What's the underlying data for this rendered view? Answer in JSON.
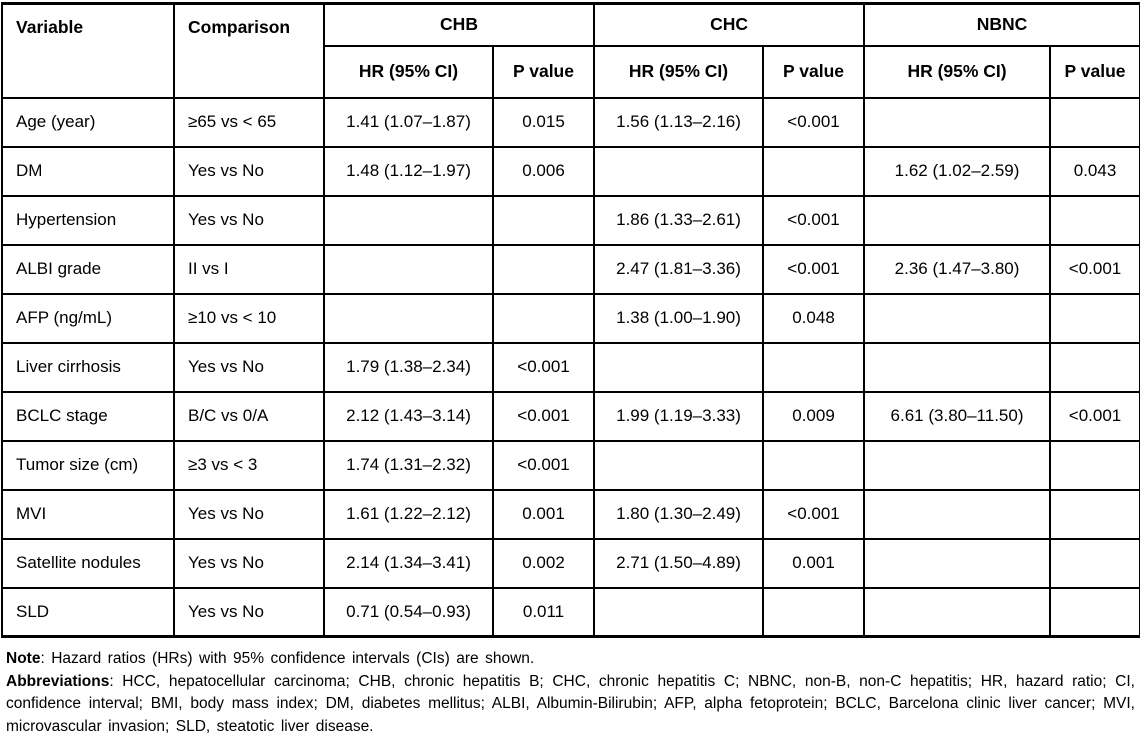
{
  "table": {
    "header": {
      "variable": "Variable",
      "comparison": "Comparison",
      "groups": [
        {
          "label": "CHB"
        },
        {
          "label": "CHC"
        },
        {
          "label": "NBNC"
        }
      ],
      "sub": {
        "hr": "HR (95% CI)",
        "p": "P value"
      }
    },
    "rows": [
      {
        "variable": "Age (year)",
        "comparison": "≥65 vs < 65",
        "chb": {
          "hr": "1.41 (1.07–1.87)",
          "p": "0.015"
        },
        "chc": {
          "hr": "1.56 (1.13–2.16)",
          "p": "<0.001"
        },
        "nbnc": {
          "hr": "",
          "p": ""
        }
      },
      {
        "variable": "DM",
        "comparison": "Yes vs No",
        "chb": {
          "hr": "1.48 (1.12–1.97)",
          "p": "0.006"
        },
        "chc": {
          "hr": "",
          "p": ""
        },
        "nbnc": {
          "hr": "1.62 (1.02–2.59)",
          "p": "0.043"
        }
      },
      {
        "variable": "Hypertension",
        "comparison": "Yes vs No",
        "chb": {
          "hr": "",
          "p": ""
        },
        "chc": {
          "hr": "1.86 (1.33–2.61)",
          "p": "<0.001"
        },
        "nbnc": {
          "hr": "",
          "p": ""
        }
      },
      {
        "variable": "ALBI grade",
        "comparison": "II vs I",
        "chb": {
          "hr": "",
          "p": ""
        },
        "chc": {
          "hr": "2.47 (1.81–3.36)",
          "p": "<0.001"
        },
        "nbnc": {
          "hr": "2.36 (1.47–3.80)",
          "p": "<0.001"
        }
      },
      {
        "variable": "AFP (ng/mL)",
        "comparison": "≥10 vs < 10",
        "chb": {
          "hr": "",
          "p": ""
        },
        "chc": {
          "hr": "1.38 (1.00–1.90)",
          "p": "0.048"
        },
        "nbnc": {
          "hr": "",
          "p": ""
        }
      },
      {
        "variable": "Liver cirrhosis",
        "comparison": "Yes vs No",
        "chb": {
          "hr": "1.79 (1.38–2.34)",
          "p": "<0.001"
        },
        "chc": {
          "hr": "",
          "p": ""
        },
        "nbnc": {
          "hr": "",
          "p": ""
        }
      },
      {
        "variable": "BCLC stage",
        "comparison": "B/C vs 0/A",
        "chb": {
          "hr": "2.12 (1.43–3.14)",
          "p": "<0.001"
        },
        "chc": {
          "hr": "1.99 (1.19–3.33)",
          "p": "0.009"
        },
        "nbnc": {
          "hr": "6.61 (3.80–11.50)",
          "p": "<0.001"
        }
      },
      {
        "variable": "Tumor size (cm)",
        "comparison": "≥3 vs < 3",
        "chb": {
          "hr": "1.74 (1.31–2.32)",
          "p": "<0.001"
        },
        "chc": {
          "hr": "",
          "p": ""
        },
        "nbnc": {
          "hr": "",
          "p": ""
        }
      },
      {
        "variable": "MVI",
        "comparison": "Yes vs No",
        "chb": {
          "hr": "1.61 (1.22–2.12)",
          "p": "0.001"
        },
        "chc": {
          "hr": "1.80 (1.30–2.49)",
          "p": "<0.001"
        },
        "nbnc": {
          "hr": "",
          "p": ""
        }
      },
      {
        "variable": "Satellite nodules",
        "comparison": "Yes vs No",
        "chb": {
          "hr": "2.14 (1.34–3.41)",
          "p": "0.002"
        },
        "chc": {
          "hr": "2.71 (1.50–4.89)",
          "p": "0.001"
        },
        "nbnc": {
          "hr": "",
          "p": ""
        }
      },
      {
        "variable": "SLD",
        "comparison": "Yes vs No",
        "chb": {
          "hr": "0.71 (0.54–0.93)",
          "p": "0.011"
        },
        "chc": {
          "hr": "",
          "p": ""
        },
        "nbnc": {
          "hr": "",
          "p": ""
        }
      }
    ]
  },
  "footnotes": {
    "note_label": "Note",
    "note_text": ": Hazard ratios (HRs) with 95% confidence intervals (CIs) are shown.",
    "abbreviations_label": "Abbreviations",
    "abbreviations_text": ": HCC, hepatocellular carcinoma; CHB, chronic hepatitis B; CHC, chronic hepatitis C; NBNC, non-B, non-C hepatitis; HR, hazard ratio; CI, confidence interval; BMI, body mass index; DM, diabetes mellitus; ALBI, Albumin-Bilirubin; AFP, alpha fetoprotein; BCLC, Barcelona clinic liver cancer; MVI, microvascular invasion; SLD, steatotic liver disease."
  },
  "colors": {
    "text": "#000000",
    "border": "#000000",
    "background": "#ffffff"
  }
}
